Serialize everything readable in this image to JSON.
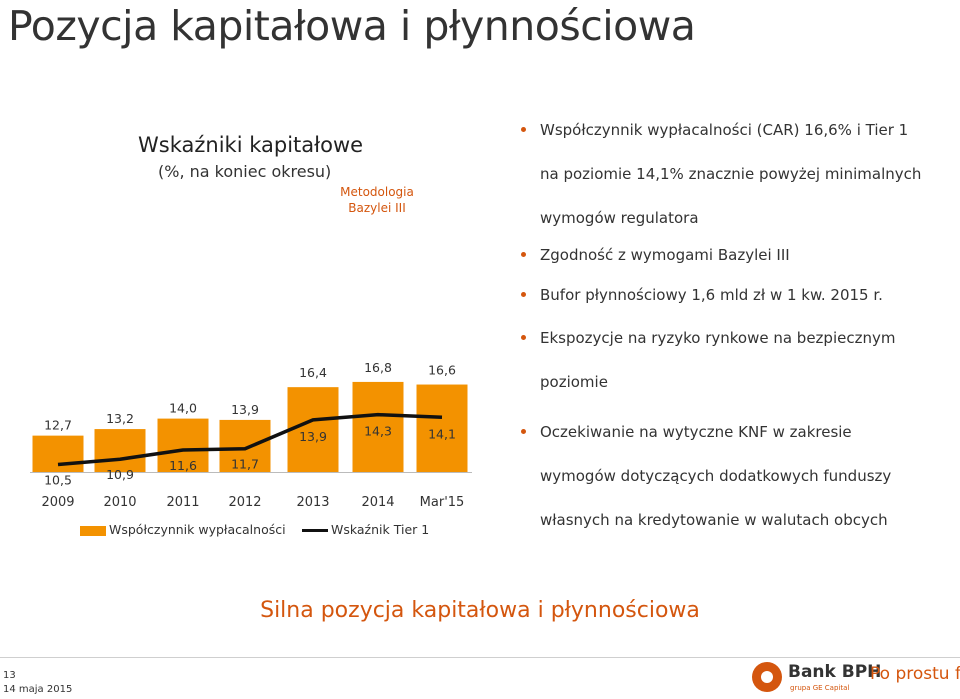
{
  "slide": {
    "title": "Pozycja kapitałowa i płynnościowa",
    "page_number": "13",
    "date": "14 maja 2015",
    "tagline": "Silna pozycja kapitałowa i płynnościowa"
  },
  "chart_heading": {
    "title": "Wskaźniki kapitałowe",
    "subtitle": "(%, na koniec okresu)",
    "basel_note_line1": "Metodologia",
    "basel_note_line2": "Bazylei III"
  },
  "chart_data": {
    "type": "bar",
    "title": "Wskaźniki kapitałowe",
    "subtitle": "(%, na koniec okresu)",
    "categories": [
      "2009",
      "2010",
      "2011",
      "2012",
      "2013",
      "2014",
      "Mar'15"
    ],
    "series": [
      {
        "name": "Współczynnik wypłacalności",
        "type": "bar",
        "values": [
          12.7,
          13.2,
          14.0,
          13.9,
          16.4,
          16.8,
          16.6
        ],
        "labels": [
          "12,7",
          "13,2",
          "14,0",
          "13,9",
          "16,4",
          "16,8",
          "16,6"
        ]
      },
      {
        "name": "Wskaźnik Tier 1",
        "type": "line",
        "values": [
          10.5,
          10.9,
          11.6,
          11.7,
          13.9,
          14.3,
          14.1
        ],
        "labels": [
          "10,5",
          "10,9",
          "11,6",
          "11,7",
          "13,9",
          "14,3",
          "14,1"
        ]
      }
    ],
    "annotation": "Metodologia Bazylei III",
    "colors": {
      "bar": "#f39200",
      "line": "#111111",
      "accent": "#d4560e"
    },
    "legend_position": "bottom",
    "grid": false
  },
  "legend": {
    "bar_label": "Współczynnik wypłacalności",
    "line_label": "Wskaźnik Tier 1"
  },
  "bullets": [
    {
      "lines": [
        "Współczynnik wypłacalności (CAR) 16,6% i Tier 1",
        "na poziomie 14,1% znacznie powyżej minimalnych",
        "wymogów regulatora"
      ]
    },
    {
      "lines": [
        "Zgodność z wymogami Bazylei III"
      ]
    },
    {
      "lines": [
        "Bufor płynnościowy 1,6 mld zł w 1 kw. 2015 r."
      ]
    },
    {
      "lines": [
        "Ekspozycje na ryzyko rynkowe na bezpiecznym",
        "poziomie"
      ]
    },
    {
      "lines": [
        "Oczekiwanie na wytyczne KNF w zakresie",
        "wymogów dotyczących dodatkowych funduszy",
        "własnych na kredytowanie w walutach obcych"
      ]
    }
  ],
  "logo": {
    "bank": "Bank BPH",
    "group": "grupa GE Capital",
    "slogan": "Po prostu fair"
  }
}
